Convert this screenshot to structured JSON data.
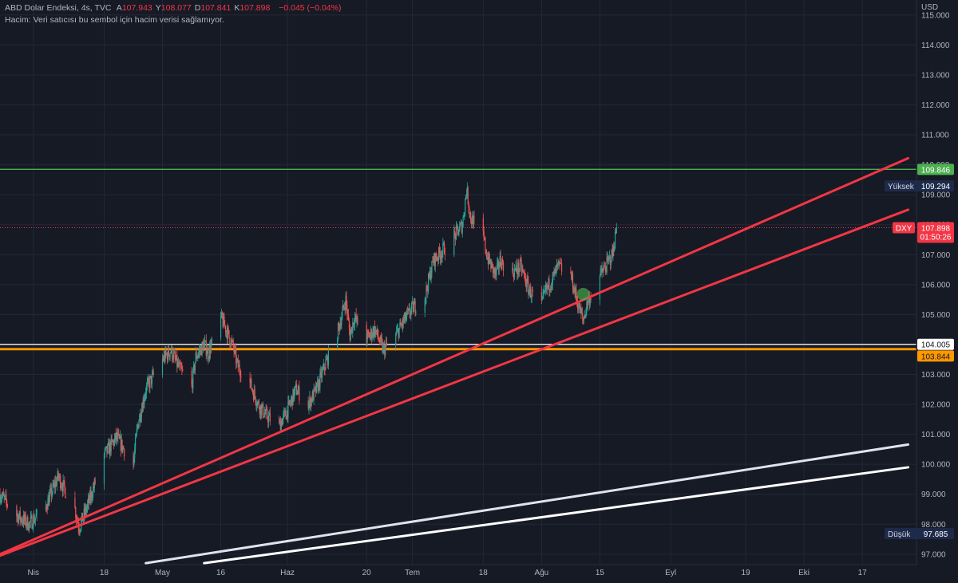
{
  "header": {
    "symbol_title": "ABD Dolar Endeksi, 4s, TVC",
    "ohlc": [
      {
        "key": "A",
        "value": "107.943"
      },
      {
        "key": "Y",
        "value": "108.077"
      },
      {
        "key": "D",
        "value": "107.841"
      },
      {
        "key": "K",
        "value": "107.898"
      }
    ],
    "change": "−0.045 (−0.04%)",
    "volume_note": "Hacim: Veri satıcısı bu sembol için hacim verisi sağlamıyor."
  },
  "colors": {
    "background": "#161a25",
    "grid": "#232836",
    "axis_text": "#b2b5be",
    "up_candle": "#26a69a",
    "down_candle": "#ef5350",
    "green_line": "#4caf50",
    "orange_line": "#ff9800",
    "white_line": "#e0e3eb",
    "red_trend": "#f23645",
    "label_navy": "#1e2a4a"
  },
  "chart_data": {
    "type": "candlestick",
    "currency": "USD",
    "y_axis": {
      "ticks": [
        "115.000",
        "114.000",
        "113.000",
        "112.000",
        "111.000",
        "110.000",
        "109.000",
        "108.000",
        "107.000",
        "106.000",
        "105.000",
        "104.000",
        "103.000",
        "102.000",
        "101.000",
        "100.000",
        "99.000",
        "98.000",
        "97.000"
      ],
      "ylim": [
        96.65,
        115.5
      ]
    },
    "x_axis": {
      "labels": [
        {
          "text": "Nis",
          "date": "2022-04-01"
        },
        {
          "text": "18",
          "date": "2022-04-18"
        },
        {
          "text": "May",
          "date": "2022-05-02"
        },
        {
          "text": "16",
          "date": "2022-05-16"
        },
        {
          "text": "Haz",
          "date": "2022-06-01"
        },
        {
          "text": "20",
          "date": "2022-06-20"
        },
        {
          "text": "Tem",
          "date": "2022-07-01"
        },
        {
          "text": "18",
          "date": "2022-07-18"
        },
        {
          "text": "Ağu",
          "date": "2022-08-01"
        },
        {
          "text": "15",
          "date": "2022-08-15"
        },
        {
          "text": "Eyl",
          "date": "2022-09-01"
        },
        {
          "text": "19",
          "date": "2022-09-19"
        },
        {
          "text": "Eki",
          "date": "2022-10-03"
        },
        {
          "text": "17",
          "date": "2022-10-17"
        }
      ],
      "xlim": [
        "2022-03-24",
        "2022-10-30"
      ]
    },
    "price_path": [
      [
        "2022-03-24",
        99.0
      ],
      [
        "2022-03-28",
        98.3
      ],
      [
        "2022-03-31",
        98.0
      ],
      [
        "2022-04-04",
        98.6
      ],
      [
        "2022-04-07",
        99.6
      ],
      [
        "2022-04-08",
        99.3
      ],
      [
        "2022-04-11",
        98.5
      ],
      [
        "2022-04-12",
        97.9
      ],
      [
        "2022-04-14",
        98.6
      ],
      [
        "2022-04-18",
        100.3
      ],
      [
        "2022-04-21",
        100.9
      ],
      [
        "2022-04-25",
        100.0
      ],
      [
        "2022-04-26",
        101.3
      ],
      [
        "2022-04-28",
        102.5
      ],
      [
        "2022-05-02",
        103.5
      ],
      [
        "2022-05-04",
        103.8
      ],
      [
        "2022-05-06",
        103.2
      ],
      [
        "2022-05-09",
        102.6
      ],
      [
        "2022-05-10",
        103.6
      ],
      [
        "2022-05-12",
        104.0
      ],
      [
        "2022-05-13",
        103.7
      ],
      [
        "2022-05-16",
        104.9
      ],
      [
        "2022-05-17",
        104.6
      ],
      [
        "2022-05-19",
        103.9
      ],
      [
        "2022-05-20",
        103.3
      ],
      [
        "2022-05-23",
        102.7
      ],
      [
        "2022-05-25",
        102.0
      ],
      [
        "2022-05-27",
        101.6
      ],
      [
        "2022-05-30",
        101.3
      ],
      [
        "2022-06-01",
        101.8
      ],
      [
        "2022-06-03",
        102.5
      ],
      [
        "2022-06-06",
        102.0
      ],
      [
        "2022-06-08",
        102.5
      ],
      [
        "2022-06-10",
        103.3
      ],
      [
        "2022-06-13",
        104.4
      ],
      [
        "2022-06-15",
        105.5
      ],
      [
        "2022-06-16",
        104.3
      ],
      [
        "2022-06-17",
        104.9
      ],
      [
        "2022-06-20",
        104.2
      ],
      [
        "2022-06-22",
        104.5
      ],
      [
        "2022-06-24",
        103.8
      ],
      [
        "2022-06-27",
        104.3
      ],
      [
        "2022-06-29",
        104.8
      ],
      [
        "2022-07-01",
        105.2
      ],
      [
        "2022-07-04",
        105.6
      ],
      [
        "2022-07-06",
        106.8
      ],
      [
        "2022-07-08",
        107.1
      ],
      [
        "2022-07-11",
        107.6
      ],
      [
        "2022-07-13",
        108.0
      ],
      [
        "2022-07-14",
        109.2
      ],
      [
        "2022-07-15",
        108.2
      ],
      [
        "2022-07-18",
        107.6
      ],
      [
        "2022-07-19",
        106.9
      ],
      [
        "2022-07-21",
        106.3
      ],
      [
        "2022-07-22",
        106.8
      ],
      [
        "2022-07-25",
        106.4
      ],
      [
        "2022-07-27",
        106.6
      ],
      [
        "2022-07-29",
        105.8
      ],
      [
        "2022-08-01",
        105.3
      ],
      [
        "2022-08-02",
        105.8
      ],
      [
        "2022-08-04",
        106.3
      ],
      [
        "2022-08-05",
        106.6
      ],
      [
        "2022-08-08",
        106.3
      ],
      [
        "2022-08-10",
        105.2
      ],
      [
        "2022-08-11",
        104.8
      ],
      [
        "2022-08-12",
        105.4
      ],
      [
        "2022-08-15",
        106.3
      ],
      [
        "2022-08-16",
        106.5
      ],
      [
        "2022-08-18",
        107.0
      ],
      [
        "2022-08-19",
        107.9
      ]
    ],
    "horizontal_lines": [
      {
        "name": "green-level",
        "value": 109.846,
        "label": "109.846",
        "color": "#4caf50"
      },
      {
        "name": "white-level",
        "value": 104.005,
        "label": "104.005",
        "color": "#e0e3eb"
      },
      {
        "name": "orange-level",
        "value": 103.844,
        "label": "103.844",
        "color": "#ff9800"
      }
    ],
    "current_price": {
      "symbol": "DXY",
      "value": 107.898,
      "label": "107.898",
      "countdown": "01:50:26"
    },
    "high_marker": {
      "text": "Yüksek",
      "value": 109.294,
      "label": "109.294"
    },
    "low_marker": {
      "text": "Düşük",
      "value": 97.685,
      "label": "97.685"
    },
    "trend_lines": [
      {
        "name": "red-trend-upper",
        "color": "#f23645",
        "from": [
          "2022-03-24",
          97.0
        ],
        "to": [
          "2022-10-28",
          110.22
        ]
      },
      {
        "name": "red-trend-lower",
        "color": "#f23645",
        "from": [
          "2022-03-24",
          96.95
        ],
        "to": [
          "2022-10-28",
          108.5
        ]
      },
      {
        "name": "white-trend-upper",
        "color": "#e0e3eb",
        "from": [
          "2022-04-28",
          96.7
        ],
        "to": [
          "2022-10-28",
          100.66
        ]
      },
      {
        "name": "white-trend-lower",
        "color": "#ffffff",
        "from": [
          "2022-05-12",
          96.7
        ],
        "to": [
          "2022-10-28",
          99.9
        ]
      }
    ],
    "marker_circle": {
      "date": "2022-08-11",
      "value": 105.68,
      "color": "#4caf50"
    }
  }
}
